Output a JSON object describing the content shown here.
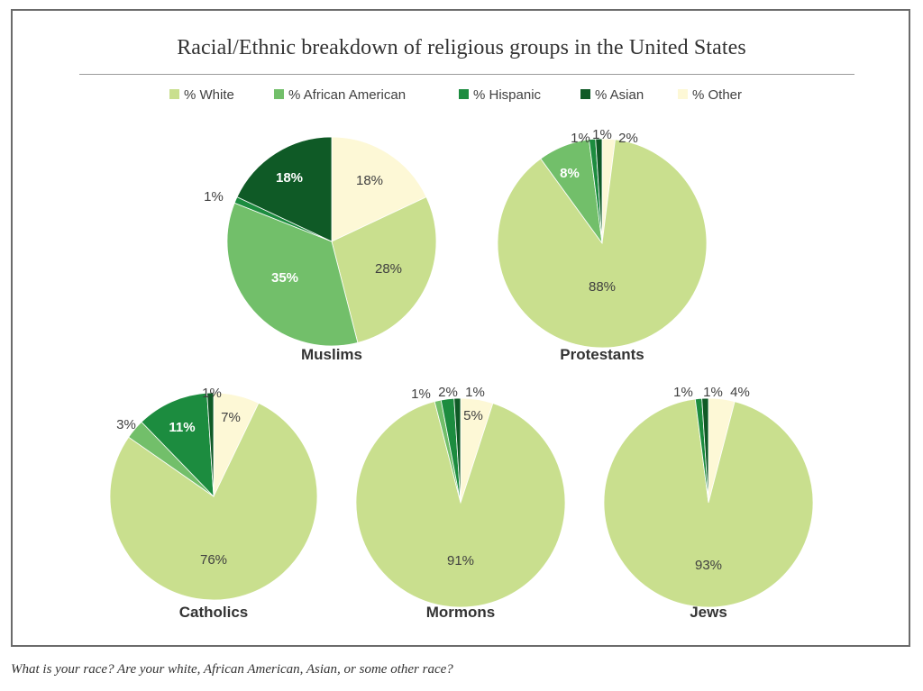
{
  "chart_data": {
    "type": "pie",
    "title": "Racial/Ethnic breakdown of religious groups in the United States",
    "caption": "What is your race? Are your white, African American, Asian, or some other race?",
    "legend_position": "top",
    "categories": [
      "% White",
      "% African American",
      "% Hispanic",
      "% Asian",
      "% Other"
    ],
    "colors": [
      "#c9df8e",
      "#72bf6a",
      "#1c8c3f",
      "#0f5a26",
      "#fdf8d6"
    ],
    "series": [
      {
        "name": "Muslims",
        "values": [
          28,
          35,
          1,
          18,
          18
        ]
      },
      {
        "name": "Protestants",
        "values": [
          88,
          8,
          1,
          1,
          2
        ]
      },
      {
        "name": "Catholics",
        "values": [
          76,
          3,
          11,
          1,
          7
        ]
      },
      {
        "name": "Mormons",
        "values": [
          91,
          1,
          2,
          1,
          5
        ]
      },
      {
        "name": "Jews",
        "values": [
          93,
          0,
          1,
          1,
          4
        ]
      }
    ],
    "data_labels": [
      [
        "28%",
        "35%",
        "1%",
        "18%",
        "18%"
      ],
      [
        "88%",
        "8%",
        "1%",
        "1%",
        "2%"
      ],
      [
        "76%",
        "3%",
        "11%",
        "1%",
        "7%"
      ],
      [
        "91%",
        "1%",
        "2%",
        "1%",
        "5%"
      ],
      [
        "93%",
        "",
        "1%",
        "1%",
        "4%"
      ]
    ]
  }
}
